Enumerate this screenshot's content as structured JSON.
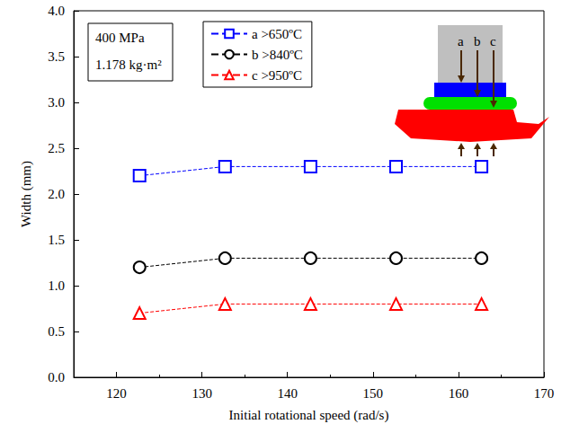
{
  "chart_data": {
    "type": "line",
    "x_label": "Initial rotational speed (rad/s)",
    "y_label": "Width (mm)",
    "annotations": [
      "400 MPa",
      "1.178 kg·m²"
    ],
    "inset_labels": [
      "a",
      "b",
      "c"
    ],
    "x": [
      122.7,
      132.7,
      142.7,
      152.7,
      162.7
    ],
    "series": [
      {
        "name": "a >650ºC",
        "color": "#0000ff",
        "marker": "square",
        "line_style": "dashed",
        "values": [
          2.2,
          2.3,
          2.3,
          2.3,
          2.3
        ]
      },
      {
        "name": "b >840ºC",
        "color": "#000000",
        "marker": "circle",
        "line_style": "dashed",
        "values": [
          1.2,
          1.3,
          1.3,
          1.3,
          1.3
        ]
      },
      {
        "name": "c >950ºC",
        "color": "#ff0000",
        "marker": "triangle",
        "line_style": "dashed",
        "values": [
          0.7,
          0.8,
          0.8,
          0.8,
          0.8
        ]
      }
    ],
    "xlim": [
      115,
      170
    ],
    "xticks": [
      120,
      130,
      140,
      150,
      160,
      170
    ],
    "ylim": [
      0,
      4
    ],
    "yticks": [
      {
        "value": 0,
        "label": "0.0"
      },
      {
        "value": 0.5,
        "label": "0.5"
      },
      {
        "value": 1,
        "label": "1.0"
      },
      {
        "value": 1.5,
        "label": "1.5"
      },
      {
        "value": 2,
        "label": "2.0"
      },
      {
        "value": 2.5,
        "label": "2.5"
      },
      {
        "value": 3,
        "label": "3.0"
      },
      {
        "value": 3.5,
        "label": "3.5"
      },
      {
        "value": 4,
        "label": "4.0"
      }
    ],
    "grid": false,
    "legend": "top"
  }
}
